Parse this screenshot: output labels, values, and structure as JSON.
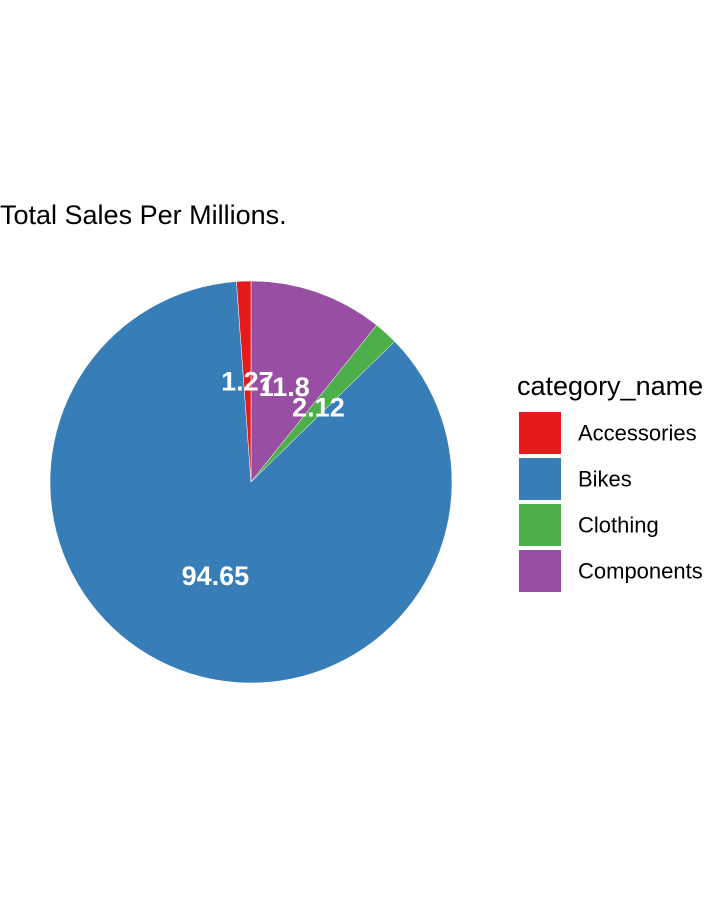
{
  "chart_data": {
    "type": "pie",
    "title": "Total Sales Per Millions.",
    "legend_title": "category_name",
    "legend_position": "right",
    "series": [
      {
        "name": "Accessories",
        "value": 1.27,
        "label": "1.27",
        "color": "#E41A1C"
      },
      {
        "name": "Bikes",
        "value": 94.65,
        "label": "94.65",
        "color": "#377EB8"
      },
      {
        "name": "Clothing",
        "value": 2.12,
        "label": "2.12",
        "color": "#4DAF4A"
      },
      {
        "name": "Components",
        "value": 11.8,
        "label": "11.8",
        "color": "#984EA3"
      }
    ]
  }
}
